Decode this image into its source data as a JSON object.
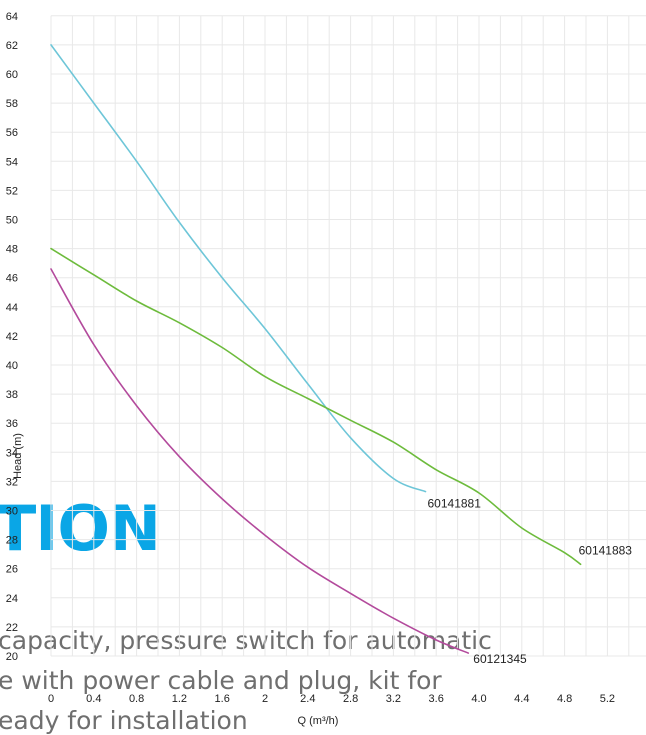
{
  "background_text": {
    "heading": "TION",
    "lines": [
      "capacity, pressure switch for automatic",
      "e with power cable and plug, kit for",
      "eady for installation"
    ]
  },
  "colors": {
    "grid": "#e8e8e8",
    "heading": "#0aa6e6",
    "body_text": "#6f6f6f"
  },
  "chart_data": {
    "type": "line",
    "title": "",
    "xlabel": "Q (m³/h)",
    "ylabel": "Head (m)",
    "xlim": [
      0,
      5.6
    ],
    "ylim": [
      20,
      64
    ],
    "x_ticks": [
      0,
      0.4,
      0.8,
      1.2,
      1.6,
      2,
      2.4,
      2.8,
      3.2,
      3.6,
      4.0,
      4.4,
      4.8,
      5.2
    ],
    "x_tick_labels": [
      "0",
      "0.4",
      "0.8",
      "1.2",
      "1.6",
      "2",
      "2.4",
      "2.8",
      "3.2",
      "3.6",
      "4.0",
      "4.4",
      "4.8",
      "5.2"
    ],
    "y_ticks": [
      20,
      22,
      24,
      26,
      28,
      30,
      32,
      34,
      36,
      38,
      40,
      42,
      44,
      46,
      48,
      50,
      52,
      54,
      56,
      58,
      60,
      62,
      64
    ],
    "grid": true,
    "legend": "none",
    "series": [
      {
        "name": "60141881",
        "color": "#6ec6d8",
        "x": [
          0,
          0.4,
          0.8,
          1.2,
          1.6,
          2.0,
          2.4,
          2.8,
          3.2,
          3.5
        ],
        "y": [
          62,
          58,
          54,
          49.8,
          46,
          42.5,
          38.7,
          35,
          32.2,
          31.3
        ]
      },
      {
        "name": "60141883",
        "color": "#6dbb3c",
        "x": [
          0,
          0.4,
          0.8,
          1.2,
          1.6,
          2.0,
          2.4,
          2.8,
          3.2,
          3.6,
          4.0,
          4.4,
          4.8,
          4.95
        ],
        "y": [
          48,
          46.2,
          44.4,
          42.9,
          41.2,
          39.2,
          37.7,
          36.2,
          34.7,
          32.8,
          31.2,
          28.8,
          27.1,
          26.3
        ]
      },
      {
        "name": "60121345",
        "color": "#b34a9c",
        "x": [
          0,
          0.4,
          0.8,
          1.2,
          1.6,
          2.0,
          2.4,
          2.8,
          3.2,
          3.6,
          3.9
        ],
        "y": [
          46.6,
          41.4,
          37.2,
          33.7,
          30.8,
          28.3,
          26.1,
          24.3,
          22.6,
          21.1,
          20.2
        ]
      }
    ]
  }
}
